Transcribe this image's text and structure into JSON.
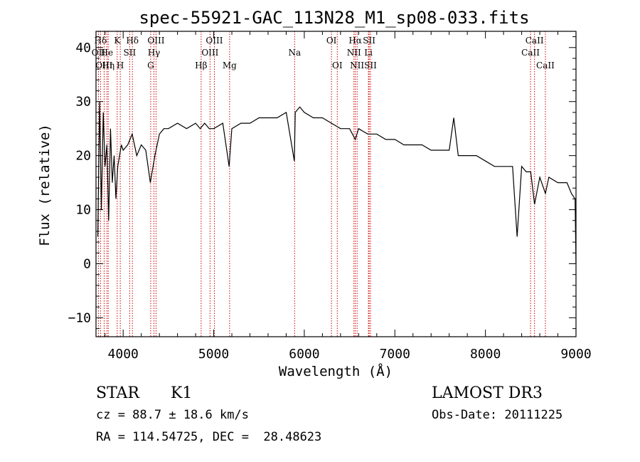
{
  "chart_data": {
    "type": "line",
    "title": "spec-55921-GAC_113N28_M1_sp08-033.fits",
    "xlabel": "Wavelength (Å)",
    "ylabel": "Flux (relative)",
    "xlim": [
      3700,
      9000
    ],
    "ylim": [
      -13.5,
      43
    ],
    "x_ticks": [
      4000,
      5000,
      6000,
      7000,
      8000,
      9000
    ],
    "x_tick_labels": [
      "4000",
      "5000",
      "6000",
      "7000",
      "8000",
      "9000"
    ],
    "y_ticks": [
      -10,
      0,
      10,
      20,
      30,
      40
    ],
    "y_tick_labels": [
      "−10",
      "0",
      "10",
      "20",
      "30",
      "40"
    ],
    "line_color": "#000000",
    "marker_color": "#cc0000",
    "series": [
      {
        "name": "flux",
        "x": [
          3720,
          3740,
          3760,
          3780,
          3800,
          3820,
          3840,
          3860,
          3880,
          3900,
          3920,
          3940,
          3960,
          3980,
          4000,
          4050,
          4100,
          4150,
          4200,
          4250,
          4300,
          4350,
          4400,
          4450,
          4500,
          4600,
          4700,
          4800,
          4850,
          4900,
          4950,
          5000,
          5100,
          5170,
          5200,
          5300,
          5400,
          5500,
          5600,
          5700,
          5800,
          5890,
          5900,
          5950,
          6000,
          6100,
          6200,
          6300,
          6400,
          6500,
          6563,
          6600,
          6700,
          6800,
          6900,
          7000,
          7100,
          7200,
          7300,
          7400,
          7500,
          7600,
          7650,
          7700,
          7800,
          7900,
          8000,
          8100,
          8200,
          8300,
          8350,
          8400,
          8450,
          8500,
          8542,
          8600,
          8662,
          8700,
          8800,
          8900,
          8950,
          8990,
          9000
        ],
        "y": [
          5,
          30,
          10,
          28,
          18,
          22,
          8,
          25,
          15,
          20,
          12,
          18,
          20,
          22,
          21,
          22,
          24,
          20,
          22,
          21,
          15,
          20,
          24,
          25,
          25,
          26,
          25,
          26,
          25,
          26,
          25,
          25,
          26,
          18,
          25,
          26,
          26,
          27,
          27,
          27,
          28,
          19,
          28,
          29,
          28,
          27,
          27,
          26,
          25,
          25,
          23,
          25,
          24,
          24,
          23,
          23,
          22,
          22,
          22,
          21,
          21,
          21,
          27,
          20,
          20,
          20,
          19,
          18,
          18,
          18,
          5,
          18,
          17,
          17,
          11,
          16,
          13,
          16,
          15,
          15,
          13,
          12,
          0
        ]
      }
    ],
    "line_markers": [
      {
        "label": "Hδ",
        "wavelength": 3750,
        "row": 1
      },
      {
        "label": "K",
        "wavelength": 3934,
        "row": 1
      },
      {
        "label": "Hδ",
        "wavelength": 4102,
        "row": 1
      },
      {
        "label": "OIII",
        "wavelength": 4363,
        "row": 1
      },
      {
        "label": "OIII",
        "wavelength": 5007,
        "row": 1
      },
      {
        "label": "OI",
        "wavelength": 6300,
        "row": 1
      },
      {
        "label": "Hα",
        "wavelength": 6563,
        "row": 1
      },
      {
        "label": "SII",
        "wavelength": 6716,
        "row": 1
      },
      {
        "label": "CaII",
        "wavelength": 8542,
        "row": 1
      },
      {
        "label": "OII",
        "wavelength": 3727,
        "row": 2
      },
      {
        "label": "He",
        "wavelength": 3820,
        "row": 2
      },
      {
        "label": "SII",
        "wavelength": 4072,
        "row": 2
      },
      {
        "label": "Hγ",
        "wavelength": 4340,
        "row": 2
      },
      {
        "label": "OIII",
        "wavelength": 4959,
        "row": 2
      },
      {
        "label": "Na",
        "wavelength": 5893,
        "row": 2
      },
      {
        "label": "NII",
        "wavelength": 6548,
        "row": 2
      },
      {
        "label": "Li",
        "wavelength": 6708,
        "row": 2
      },
      {
        "label": "CaII",
        "wavelength": 8498,
        "row": 2
      },
      {
        "label": "OIII",
        "wavelength": 3790,
        "row": 3
      },
      {
        "label": "Hη",
        "wavelength": 3835,
        "row": 3
      },
      {
        "label": "H",
        "wavelength": 3968,
        "row": 3
      },
      {
        "label": "G",
        "wavelength": 4304,
        "row": 3
      },
      {
        "label": "Hβ",
        "wavelength": 4861,
        "row": 3
      },
      {
        "label": "Mg",
        "wavelength": 5175,
        "row": 3
      },
      {
        "label": "OI",
        "wavelength": 6364,
        "row": 3
      },
      {
        "label": "NII",
        "wavelength": 6583,
        "row": 3
      },
      {
        "label": "SII",
        "wavelength": 6731,
        "row": 3
      },
      {
        "label": "CaII",
        "wavelength": 8662,
        "row": 3
      }
    ]
  },
  "info": {
    "object_class": "STAR",
    "subclass": "K1",
    "redshift": "cz = 88.7 ± 18.6 km/s",
    "coords": "RA = 114.54725, DEC =  28.48623",
    "survey": "LAMOST DR3",
    "obs_date": "Obs-Date: 20111225"
  }
}
